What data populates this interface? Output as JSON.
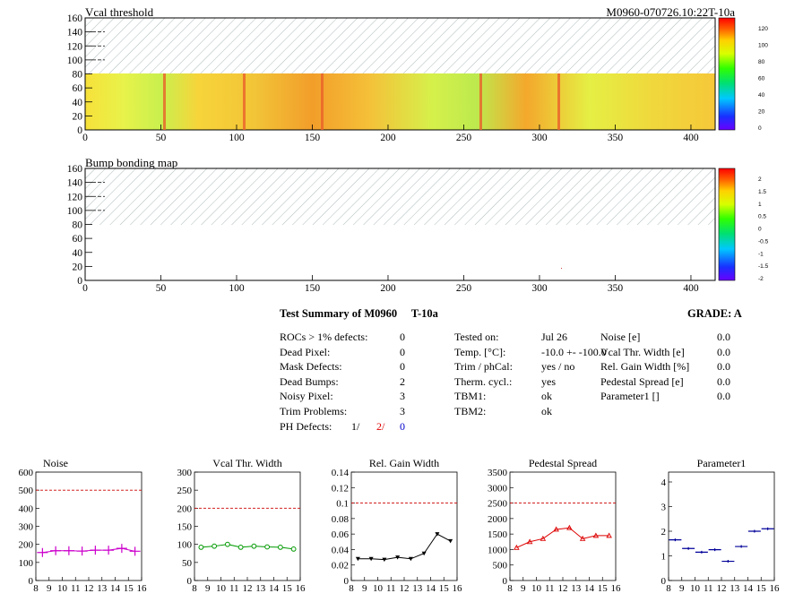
{
  "header": {
    "title_left": "Vcal threshold",
    "title_right": "M0960-070726.10:22T-10a"
  },
  "map1": {
    "title": "Vcal threshold",
    "y_ticks": [
      "160",
      "140",
      "120",
      "100",
      "80",
      "60",
      "40",
      "20",
      "0"
    ],
    "x_ticks": [
      "0",
      "50",
      "100",
      "150",
      "200",
      "250",
      "300",
      "350",
      "400"
    ],
    "palette_labels": [
      "120",
      "100",
      "80",
      "60",
      "40",
      "20",
      "0"
    ]
  },
  "map2": {
    "title": "Bump bonding map",
    "y_ticks": [
      "160",
      "140",
      "120",
      "100",
      "80",
      "60",
      "40",
      "20",
      "0"
    ],
    "x_ticks": [
      "0",
      "50",
      "100",
      "150",
      "200",
      "250",
      "300",
      "350",
      "400"
    ],
    "palette_labels": [
      "2",
      "1.5",
      "1",
      "0.5",
      "0",
      "-0.5",
      "-1",
      "-1.5",
      "-2"
    ]
  },
  "summary": {
    "title": "Test Summary of M0960",
    "temp_label": "T-10a",
    "grade": "GRADE:  A",
    "left": [
      {
        "label": "ROCs > 1% defects:",
        "value": "0"
      },
      {
        "label": "Dead Pixel:",
        "value": "0"
      },
      {
        "label": "Mask Defects:",
        "value": "0"
      },
      {
        "label": "Dead Bumps:",
        "value": "2"
      },
      {
        "label": "Noisy Pixel:",
        "value": "3"
      },
      {
        "label": "Trim Problems:",
        "value": "3"
      }
    ],
    "ph_label": "PH Defects:",
    "ph_values": [
      "1/",
      "2/",
      "0"
    ],
    "mid": [
      {
        "label": "Tested on:",
        "value": "Jul 26"
      },
      {
        "label": "Temp. [°C]:",
        "value": "-10.0 +- -100.0"
      },
      {
        "label": "Trim / phCal:",
        "value": "yes / no"
      },
      {
        "label": "Therm. cycl.:",
        "value": "yes"
      },
      {
        "label": "TBM1:",
        "value": "ok"
      },
      {
        "label": "TBM2:",
        "value": "ok"
      }
    ],
    "right": [
      {
        "label": "Noise [e]",
        "value": "0.0"
      },
      {
        "label": "Vcal Thr. Width [e]",
        "value": "0.0"
      },
      {
        "label": "Rel. Gain Width [%]",
        "value": "0.0"
      },
      {
        "label": "Pedestal Spread [e]",
        "value": "0.0"
      },
      {
        "label": "Parameter1 []",
        "value": "0.0"
      }
    ]
  },
  "chart_data": [
    {
      "type": "line",
      "title": "Noise",
      "color": "#cc00cc",
      "marker": "plus",
      "x": [
        8.5,
        9.5,
        10.5,
        11.5,
        12.5,
        13.5,
        14.5,
        15.5
      ],
      "values": [
        155,
        165,
        165,
        163,
        168,
        168,
        178,
        162
      ],
      "xlim": [
        8,
        16
      ],
      "ylim": [
        0,
        600
      ],
      "yticks": [
        "0",
        "100",
        "200",
        "300",
        "400",
        "500",
        "600"
      ],
      "xticks": [
        "8",
        "9",
        "10",
        "11",
        "12",
        "13",
        "14",
        "15",
        "16"
      ],
      "cut": 500
    },
    {
      "type": "line",
      "title": "Vcal Thr. Width",
      "color": "#009900",
      "marker": "circle",
      "x": [
        8.5,
        9.5,
        10.5,
        11.5,
        12.5,
        13.5,
        14.5,
        15.5
      ],
      "values": [
        92,
        95,
        100,
        92,
        95,
        93,
        92,
        87
      ],
      "xlim": [
        8,
        16
      ],
      "ylim": [
        0,
        300
      ],
      "yticks": [
        "0",
        "50",
        "100",
        "150",
        "200",
        "250",
        "300"
      ],
      "xticks": [
        "8",
        "9",
        "10",
        "11",
        "12",
        "13",
        "14",
        "15",
        "16"
      ],
      "cut": 200
    },
    {
      "type": "line",
      "title": "Rel. Gain Width",
      "color": "#000000",
      "marker": "triangle",
      "x": [
        8.5,
        9.5,
        10.5,
        11.5,
        12.5,
        13.5,
        14.5,
        15.5
      ],
      "values": [
        0.028,
        0.028,
        0.027,
        0.03,
        0.028,
        0.035,
        0.06,
        0.051
      ],
      "xlim": [
        8,
        16
      ],
      "ylim": [
        0,
        0.14
      ],
      "yticks": [
        "0",
        "0.02",
        "0.04",
        "0.06",
        "0.08",
        "0.1",
        "0.12",
        "0.14"
      ],
      "xticks": [
        "8",
        "9",
        "10",
        "11",
        "12",
        "13",
        "14",
        "15",
        "16"
      ],
      "cut": 0.1
    },
    {
      "type": "line",
      "title": "Pedestal Spread",
      "color": "#dd0000",
      "marker": "triangle-up",
      "x": [
        8.5,
        9.5,
        10.5,
        11.5,
        12.5,
        13.5,
        14.5,
        15.5
      ],
      "values": [
        1060,
        1250,
        1350,
        1650,
        1700,
        1350,
        1450,
        1450
      ],
      "xlim": [
        8,
        16
      ],
      "ylim": [
        0,
        3500
      ],
      "yticks": [
        "0",
        "500",
        "1000",
        "1500",
        "2000",
        "2500",
        "3000",
        "3500"
      ],
      "xticks": [
        "8",
        "9",
        "10",
        "11",
        "12",
        "13",
        "14",
        "15",
        "16"
      ],
      "cut": 2500
    },
    {
      "type": "scatter",
      "title": "Parameter1",
      "color": "#000099",
      "marker": "hbar",
      "x": [
        8.5,
        9.5,
        10.5,
        11.5,
        12.5,
        13.5,
        14.5,
        15.5
      ],
      "values": [
        1.65,
        1.3,
        1.15,
        1.25,
        0.78,
        1.38,
        2.0,
        2.1
      ],
      "xlim": [
        8,
        16
      ],
      "ylim": [
        0,
        4.4
      ],
      "yticks": [
        "0",
        "1",
        "2",
        "3",
        "4"
      ],
      "xticks": [
        "8",
        "9",
        "10",
        "11",
        "12",
        "13",
        "14",
        "15",
        "16"
      ],
      "cut": null
    }
  ]
}
